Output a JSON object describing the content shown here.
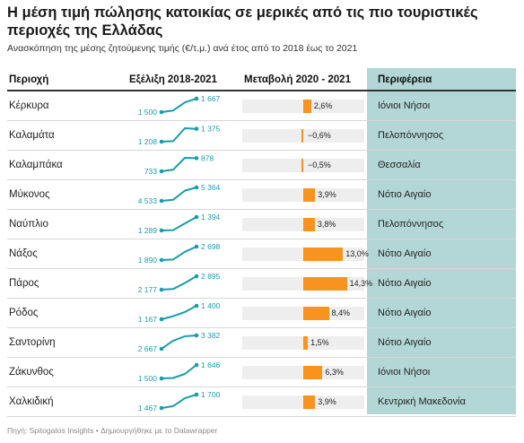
{
  "header": {
    "title": "Η μέση τιμή πώλησης κατοικίας σε μερικές από τις πιο τουριστικές περιοχές της Ελλάδας",
    "subtitle": "Ανασκόπηση της μέσης ζητούμενης τιμής (€/τ.μ.) ανά έτος από το 2018 έως το 2021"
  },
  "columns": {
    "area": "Περιοχή",
    "trend": "Εξέλιξη 2018-2021",
    "change": "Μεταβολή 2020 - 2021",
    "region": "Περιφέρεια"
  },
  "footer": "Πηγή: Spitogatos Insights • Δημιουργήθηκε με το Datawrapper",
  "colors": {
    "line": "#1a9da8",
    "bar": "#f7931e",
    "bar_bg": "#eeeeee",
    "region_bg": "#b3d7d6"
  },
  "chart_data": {
    "type": "table",
    "years": [
      2018,
      2019,
      2020,
      2021
    ],
    "change_axis": [
      -20,
      20
    ],
    "rows": [
      {
        "area": "Κέρκυρα",
        "start_label": "1 500",
        "end_label": "1 667",
        "values": [
          1500,
          1520,
          1620,
          1667
        ],
        "change": 2.6,
        "change_label": "2,6%",
        "region": "Ιόνιοι Νήσοι"
      },
      {
        "area": "Καλαμάτα",
        "start_label": "1 208",
        "end_label": "1 375",
        "values": [
          1208,
          1215,
          1383,
          1375
        ],
        "change": -0.6,
        "change_label": "−0,6%",
        "region": "Πελοπόννησος"
      },
      {
        "area": "Καλαμπάκα",
        "start_label": "733",
        "end_label": "878",
        "values": [
          733,
          750,
          882,
          878
        ],
        "change": -0.5,
        "change_label": "−0,5%",
        "region": "Θεσσαλία"
      },
      {
        "area": "Μύκονος",
        "start_label": "4 533",
        "end_label": "5 364",
        "values": [
          4533,
          4600,
          5163,
          5364
        ],
        "change": 3.9,
        "change_label": "3,9%",
        "region": "Νότιο Αιγαίο"
      },
      {
        "area": "Ναύπλιο",
        "start_label": "1 289",
        "end_label": "1 394",
        "values": [
          1289,
          1292,
          1343,
          1394
        ],
        "change": 3.8,
        "change_label": "3,8%",
        "region": "Πελοπόννησος"
      },
      {
        "area": "Νάξος",
        "start_label": "1 890",
        "end_label": "2 698",
        "values": [
          1890,
          1920,
          2387,
          2698
        ],
        "change": 13.0,
        "change_label": "13,0%",
        "region": "Νότιο Αιγαίο"
      },
      {
        "area": "Πάρος",
        "start_label": "2 177",
        "end_label": "2 895",
        "values": [
          2177,
          2210,
          2533,
          2895
        ],
        "change": 14.3,
        "change_label": "14,3%",
        "region": "Νότιο Αιγαίο"
      },
      {
        "area": "Ρόδος",
        "start_label": "1 167",
        "end_label": "1 400",
        "values": [
          1167,
          1220,
          1292,
          1400
        ],
        "change": 8.4,
        "change_label": "8,4%",
        "region": "Νότιο Αιγαίο"
      },
      {
        "area": "Σαντορίνη",
        "start_label": "2 667",
        "end_label": "3 382",
        "values": [
          2667,
          3100,
          3332,
          3382
        ],
        "change": 1.5,
        "change_label": "1,5%",
        "region": "Νότιο Αιγαίο"
      },
      {
        "area": "Ζάκυνθος",
        "start_label": "1 500",
        "end_label": "1 646",
        "values": [
          1500,
          1505,
          1549,
          1646
        ],
        "change": 6.3,
        "change_label": "6,3%",
        "region": "Ιόνιοι Νήσοι"
      },
      {
        "area": "Χαλκιδική",
        "start_label": "1 467",
        "end_label": "1 700",
        "values": [
          1467,
          1500,
          1636,
          1700
        ],
        "change": 3.9,
        "change_label": "3,9%",
        "region": "Κεντρική Μακεδονία"
      }
    ]
  }
}
